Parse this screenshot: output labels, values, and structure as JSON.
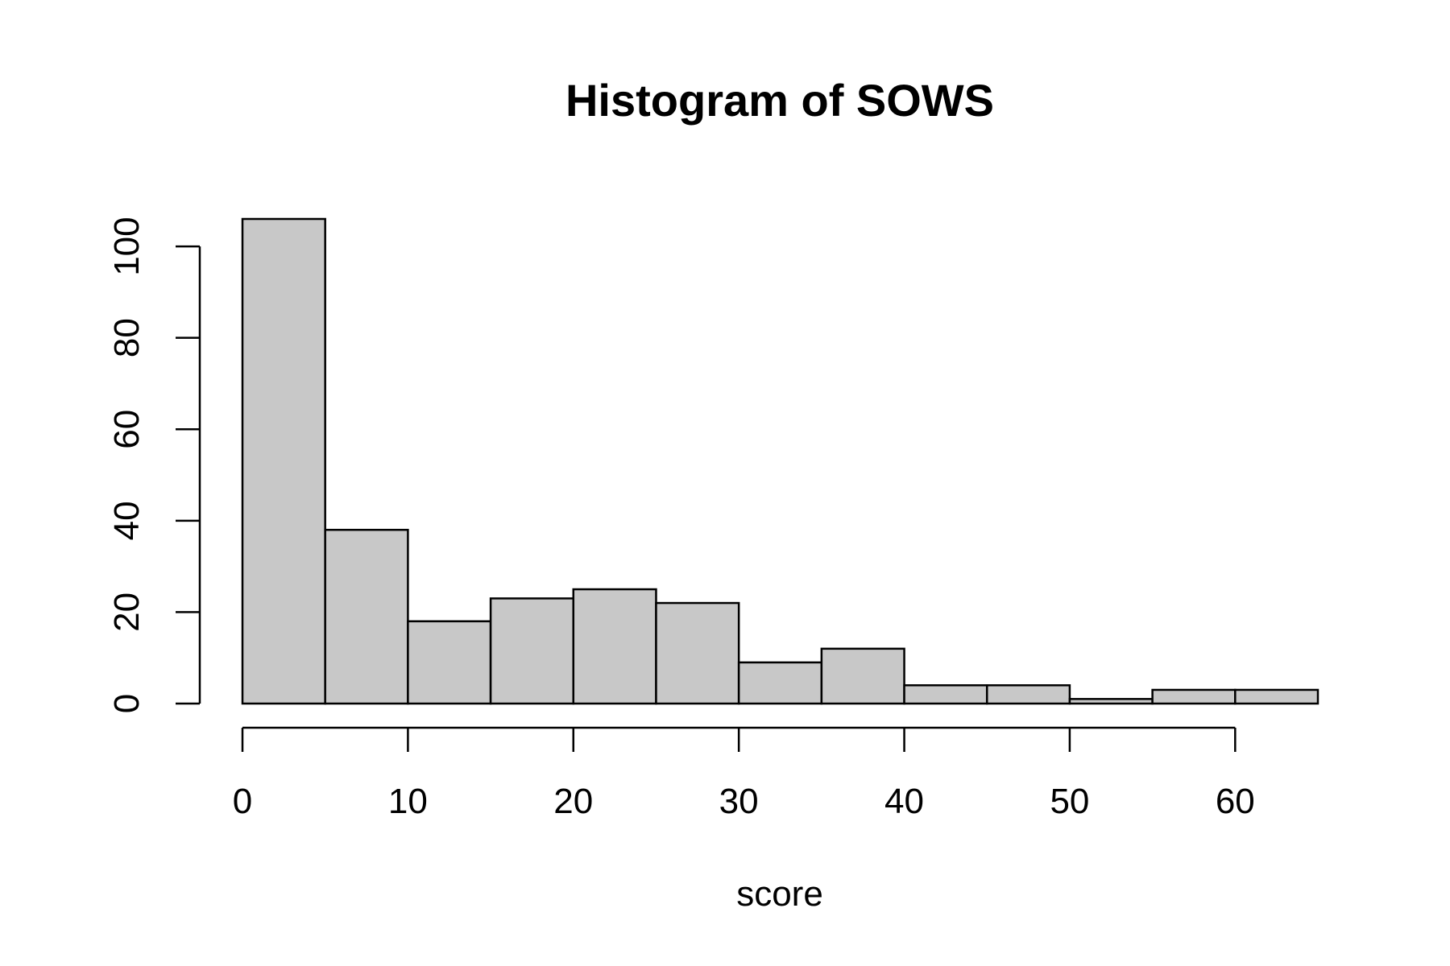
{
  "chart_data": {
    "type": "bar",
    "title": "Histogram of SOWS",
    "xlabel": "score",
    "ylabel": "",
    "bins": [
      {
        "start": 0,
        "end": 5,
        "count": 106
      },
      {
        "start": 5,
        "end": 10,
        "count": 38
      },
      {
        "start": 10,
        "end": 15,
        "count": 18
      },
      {
        "start": 15,
        "end": 20,
        "count": 23
      },
      {
        "start": 20,
        "end": 25,
        "count": 25
      },
      {
        "start": 25,
        "end": 30,
        "count": 22
      },
      {
        "start": 30,
        "end": 35,
        "count": 9
      },
      {
        "start": 35,
        "end": 40,
        "count": 12
      },
      {
        "start": 40,
        "end": 45,
        "count": 4
      },
      {
        "start": 45,
        "end": 50,
        "count": 4
      },
      {
        "start": 50,
        "end": 55,
        "count": 1
      },
      {
        "start": 55,
        "end": 60,
        "count": 3
      },
      {
        "start": 60,
        "end": 65,
        "count": 3
      }
    ],
    "xticks": [
      0,
      10,
      20,
      30,
      40,
      50,
      60
    ],
    "yticks": [
      0,
      20,
      40,
      60,
      80,
      100
    ],
    "xlim": [
      0,
      65
    ],
    "ylim": [
      0,
      106
    ],
    "grid": false,
    "bar_color": "#c8c8c8",
    "edge_color": "#000000"
  }
}
